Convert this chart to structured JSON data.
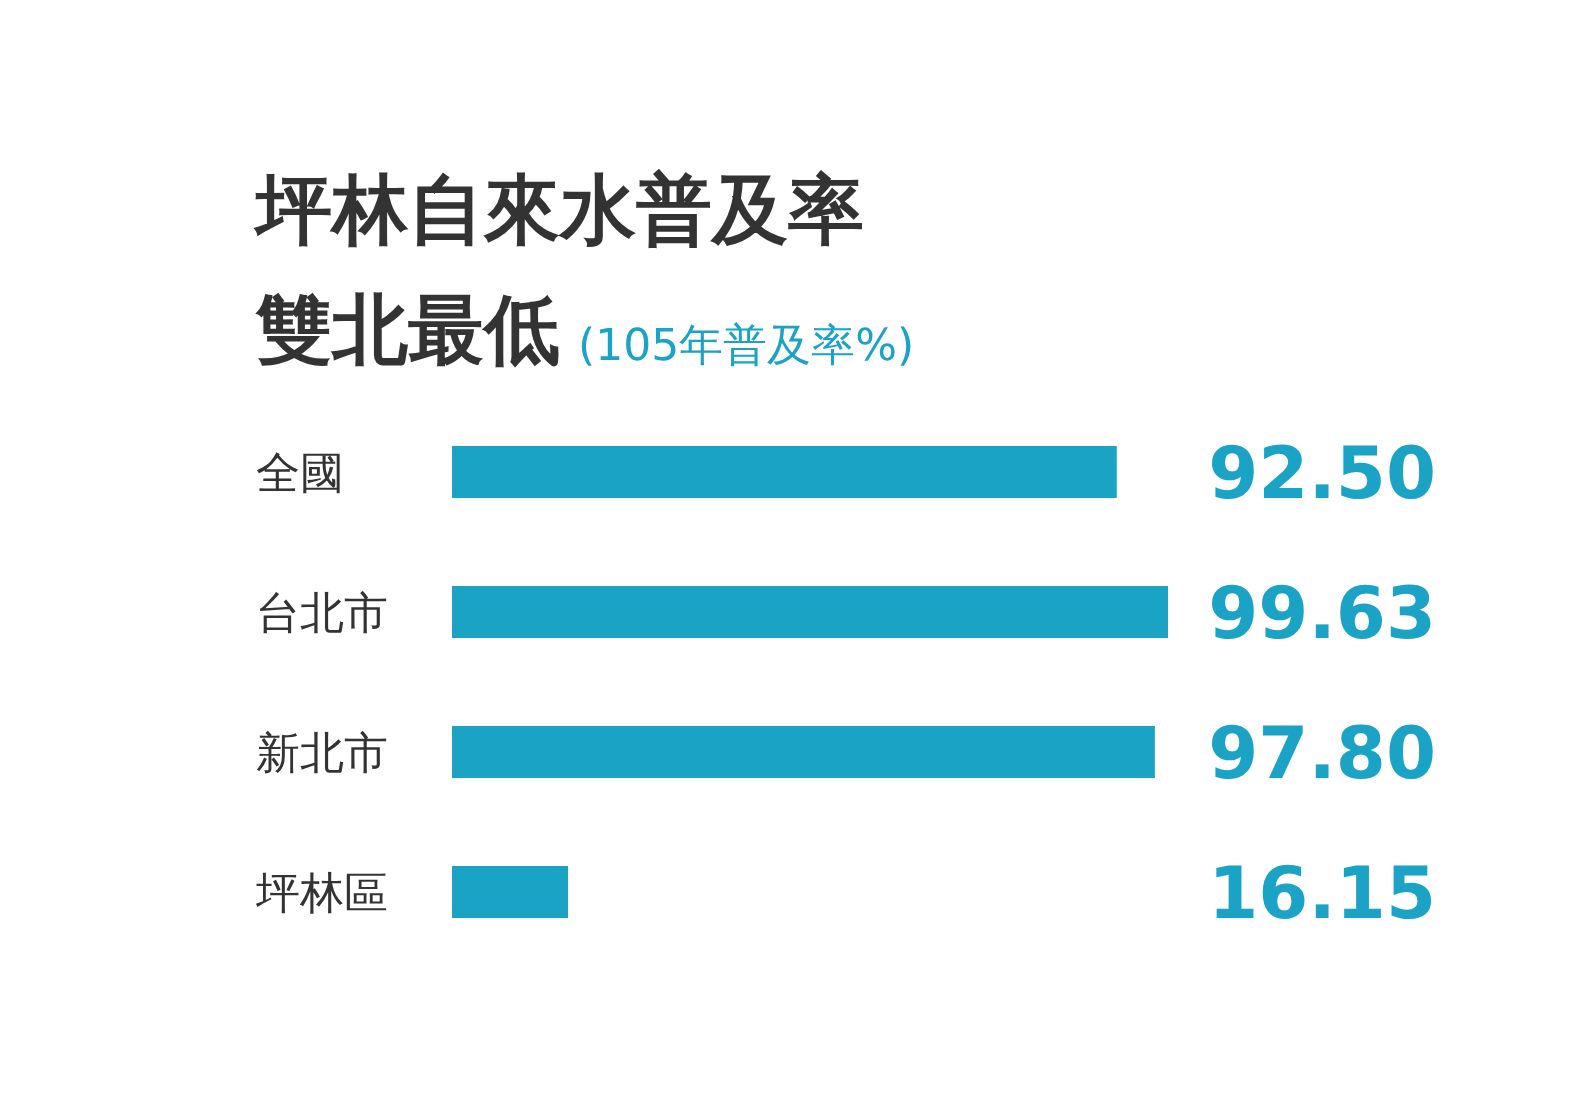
{
  "chart_data": {
    "type": "bar",
    "orientation": "horizontal",
    "title": "坪林自來水普及率",
    "subtitle": "雙北最低",
    "annotations": [
      "(105年普及率%)"
    ],
    "categories": [
      "全國",
      "台北市",
      "新北市",
      "坪林區"
    ],
    "values": [
      92.5,
      99.63,
      97.8,
      16.15
    ],
    "value_labels": [
      "92.50",
      "99.63",
      "97.80",
      "16.15"
    ],
    "color": "#1ba3c6"
  }
}
